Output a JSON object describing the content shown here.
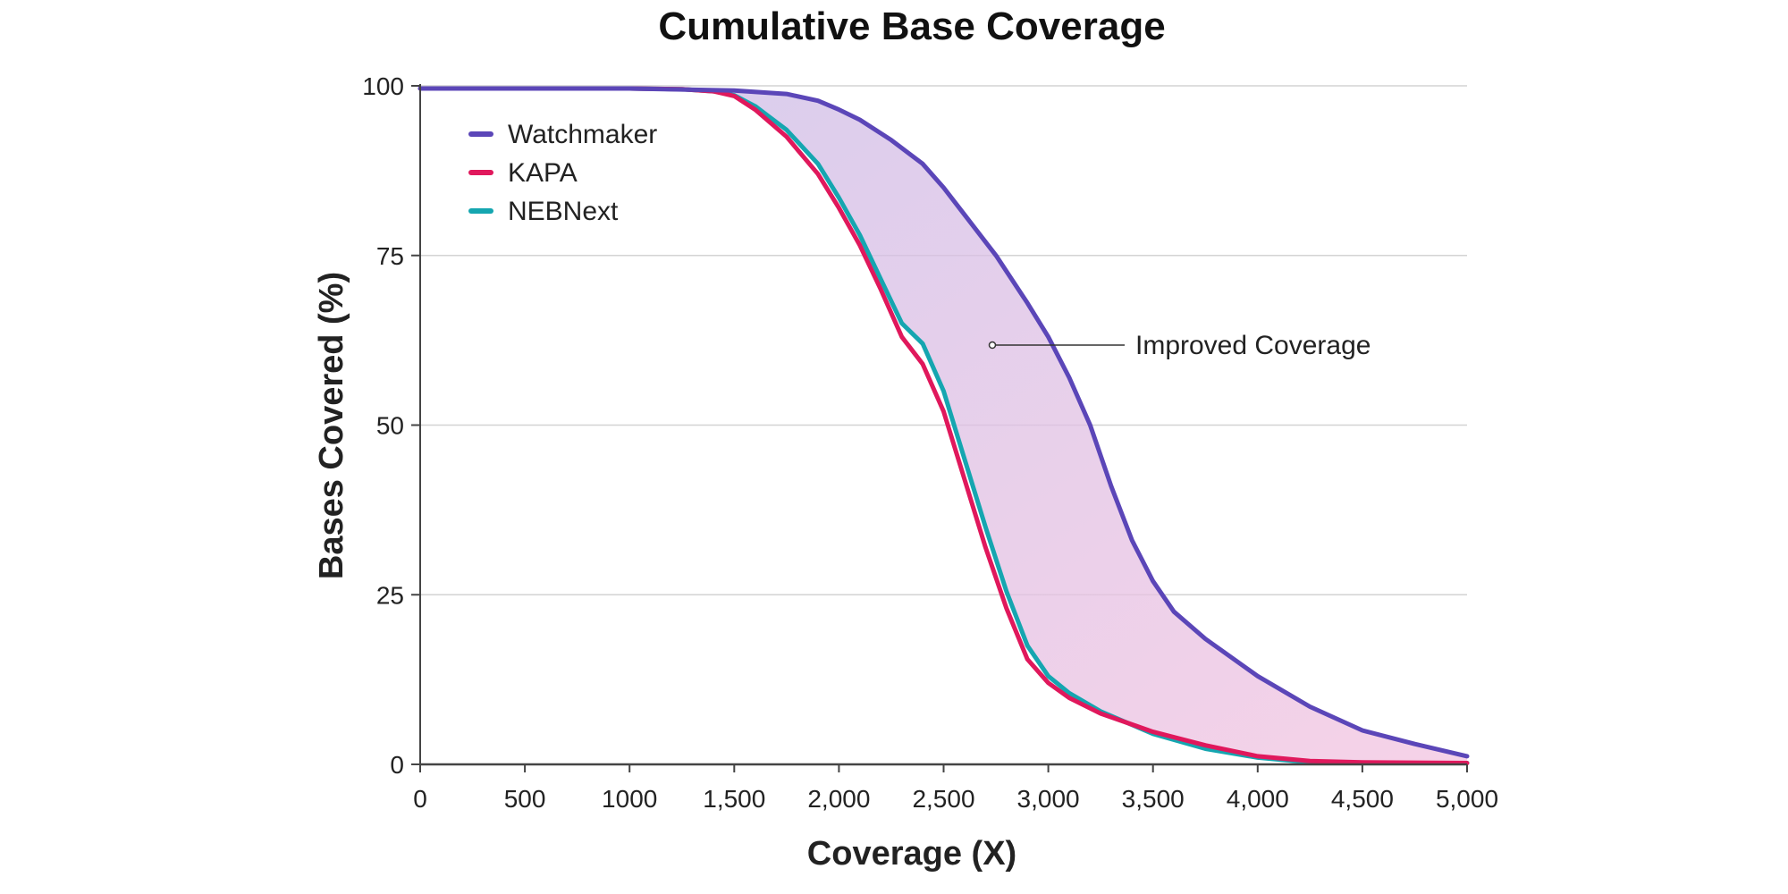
{
  "chart_data": {
    "type": "line",
    "title": "Cumulative Base Coverage",
    "xlabel": "Coverage (X)",
    "ylabel": "Bases Covered (%)",
    "xlim": [
      0,
      5000
    ],
    "ylim": [
      0,
      100
    ],
    "x_ticks": [
      0,
      500,
      1000,
      1500,
      2000,
      2500,
      3000,
      3500,
      4000,
      4500,
      5000
    ],
    "x_tick_labels": [
      "0",
      "500",
      "1000",
      "1,500",
      "2,000",
      "2,500",
      "3,000",
      "3,500",
      "4,000",
      "4,500",
      "5,000"
    ],
    "y_ticks": [
      0,
      25,
      50,
      75,
      100
    ],
    "y_tick_labels": [
      "0",
      "25",
      "50",
      "75",
      "100"
    ],
    "grid": "horizontal",
    "legend_position": "top-left",
    "annotation": "Improved Coverage",
    "fill_between": [
      "Watchmaker",
      "NEBNext"
    ],
    "fill_colors": [
      "#c9bce8",
      "#f3c3e0"
    ],
    "series": [
      {
        "name": "Watchmaker",
        "color": "#5b46b8",
        "points": [
          [
            0,
            99.6
          ],
          [
            500,
            99.6
          ],
          [
            1000,
            99.6
          ],
          [
            1500,
            99.3
          ],
          [
            1750,
            98.8
          ],
          [
            1900,
            97.8
          ],
          [
            2000,
            96.5
          ],
          [
            2100,
            95
          ],
          [
            2250,
            92
          ],
          [
            2400,
            88.5
          ],
          [
            2500,
            85
          ],
          [
            2600,
            81
          ],
          [
            2750,
            75
          ],
          [
            2900,
            68
          ],
          [
            3000,
            63
          ],
          [
            3100,
            57
          ],
          [
            3200,
            50
          ],
          [
            3300,
            41
          ],
          [
            3400,
            33
          ],
          [
            3500,
            27
          ],
          [
            3600,
            22.5
          ],
          [
            3750,
            18.5
          ],
          [
            4000,
            13
          ],
          [
            4250,
            8.5
          ],
          [
            4500,
            5
          ],
          [
            4750,
            3
          ],
          [
            5000,
            1.2
          ]
        ]
      },
      {
        "name": "KAPA",
        "color": "#e0185c",
        "points": [
          [
            0,
            99.6
          ],
          [
            500,
            99.6
          ],
          [
            1000,
            99.6
          ],
          [
            1250,
            99.5
          ],
          [
            1400,
            99.2
          ],
          [
            1500,
            98.5
          ],
          [
            1600,
            96.5
          ],
          [
            1750,
            92.5
          ],
          [
            1900,
            87
          ],
          [
            2000,
            82
          ],
          [
            2100,
            76.5
          ],
          [
            2200,
            70
          ],
          [
            2300,
            63
          ],
          [
            2400,
            59
          ],
          [
            2500,
            52
          ],
          [
            2600,
            42
          ],
          [
            2700,
            32
          ],
          [
            2800,
            23
          ],
          [
            2900,
            15.5
          ],
          [
            3000,
            12
          ],
          [
            3100,
            9.8
          ],
          [
            3250,
            7.5
          ],
          [
            3500,
            4.8
          ],
          [
            3750,
            2.8
          ],
          [
            4000,
            1.2
          ],
          [
            4250,
            0.5
          ],
          [
            4500,
            0.3
          ],
          [
            5000,
            0.2
          ]
        ]
      },
      {
        "name": "NEBNext",
        "color": "#15a6b0",
        "points": [
          [
            0,
            99.6
          ],
          [
            500,
            99.6
          ],
          [
            1000,
            99.6
          ],
          [
            1250,
            99.5
          ],
          [
            1400,
            99.2
          ],
          [
            1500,
            98.6
          ],
          [
            1600,
            97
          ],
          [
            1750,
            93.5
          ],
          [
            1900,
            88.5
          ],
          [
            2000,
            83.5
          ],
          [
            2100,
            78
          ],
          [
            2200,
            71.5
          ],
          [
            2300,
            65
          ],
          [
            2400,
            62
          ],
          [
            2500,
            55
          ],
          [
            2600,
            45
          ],
          [
            2700,
            35
          ],
          [
            2800,
            25.5
          ],
          [
            2900,
            17.5
          ],
          [
            3000,
            13
          ],
          [
            3100,
            10.5
          ],
          [
            3250,
            7.8
          ],
          [
            3500,
            4.5
          ],
          [
            3750,
            2.3
          ],
          [
            4000,
            1
          ],
          [
            4250,
            0.3
          ],
          [
            4500,
            0.2
          ],
          [
            5000,
            0.2
          ]
        ]
      }
    ]
  }
}
